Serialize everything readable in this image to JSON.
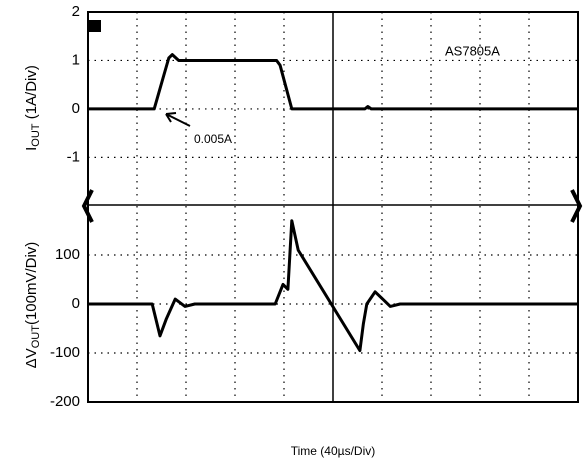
{
  "chart_data": [
    {
      "type": "line",
      "ylabel": [
        "I",
        "OUT",
        " (1A/Div)"
      ],
      "xlim": [
        0,
        10
      ],
      "xticks": [
        1,
        2,
        3,
        4,
        6,
        7,
        8,
        9
      ],
      "ylim": [
        -1.9,
        2
      ],
      "yticks": [
        -1,
        0,
        1,
        2
      ],
      "grid": true,
      "annotations": [
        "AS7805A",
        "0.005A"
      ],
      "series": [
        {
          "color": "#000000",
          "x": [
            0,
            1.35,
            1.55,
            1.65,
            1.72,
            1.85,
            3.85,
            3.92,
            4.16,
            5.65,
            5.71,
            5.78,
            10
          ],
          "values": [
            0,
            0,
            0.7,
            1.05,
            1.12,
            1.0,
            1.0,
            0.9,
            0,
            0,
            0.05,
            0,
            0
          ]
        }
      ]
    },
    {
      "type": "line",
      "ylabel": [
        "ΔV",
        "OUT",
        "(100mV/Div)"
      ],
      "xlabel": "Time (40µs/Div)",
      "xlim": [
        0,
        10
      ],
      "xticks": [
        1,
        2,
        3,
        4,
        6,
        7,
        8,
        9
      ],
      "ylim": [
        -200,
        200
      ],
      "yticks": [
        -200,
        -100,
        0,
        100
      ],
      "grid": true,
      "series": [
        {
          "color": "#000000",
          "x": [
            0,
            1.31,
            1.47,
            1.6,
            1.78,
            1.98,
            2.18,
            3.82,
            3.98,
            4.08,
            4.16,
            4.29,
            5.55,
            5.62,
            5.69,
            5.86,
            6.17,
            6.37,
            10
          ],
          "values": [
            0,
            0,
            -65,
            -30,
            10,
            -5,
            0,
            0,
            40,
            30,
            170,
            110,
            -95,
            -40,
            0,
            25,
            -5,
            0,
            0
          ]
        }
      ]
    }
  ]
}
